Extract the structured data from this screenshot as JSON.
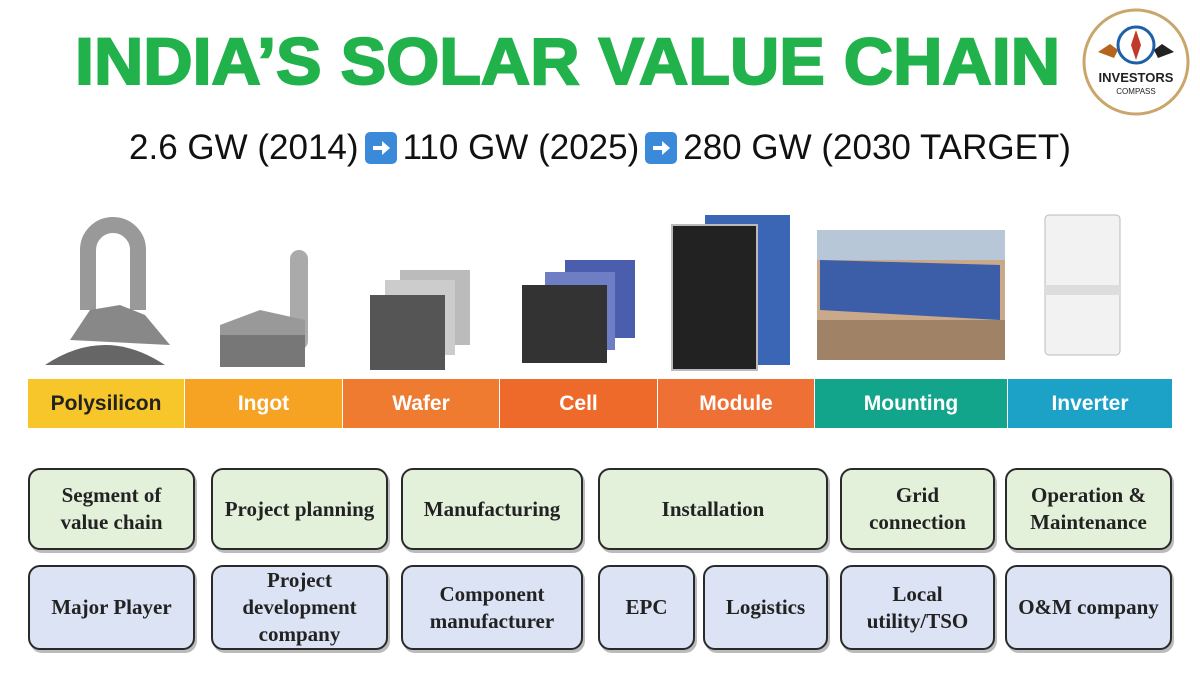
{
  "header": {
    "title": "INDIA’S SOLAR VALUE CHAIN",
    "logo": {
      "line1": "INVESTORS",
      "line2": "COMPASS"
    }
  },
  "subtitle": {
    "steps": [
      "2.6 GW (2014)",
      "110 GW (2025)",
      "280 GW (2030 TARGET)"
    ]
  },
  "stages": [
    {
      "label": "Polysilicon",
      "color": "#f7c62a"
    },
    {
      "label": "Ingot",
      "color": "#f6a323"
    },
    {
      "label": "Wafer",
      "color": "#ee7b30"
    },
    {
      "label": "Cell",
      "color": "#ee6a2b"
    },
    {
      "label": "Module",
      "color": "#ef7035"
    },
    {
      "label": "Mounting",
      "color": "#13a58b"
    },
    {
      "label": "Inverter",
      "color": "#1ca1c7"
    }
  ],
  "segments": [
    "Segment of value chain",
    "Project planning",
    "Manufacturing",
    "Installation",
    "Grid connection",
    "Operation & Maintenance"
  ],
  "players": [
    "Major Player",
    "Project development company",
    "Component manufacturer",
    "EPC",
    "Logistics",
    "Local utility/TSO",
    "O&M company"
  ]
}
